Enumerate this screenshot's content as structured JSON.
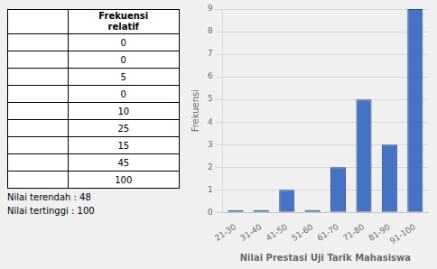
{
  "chart_data": [
    {
      "type": "table",
      "header": "Frekuensi\nrelatif",
      "values": [
        0,
        0,
        5,
        0,
        10,
        25,
        15,
        45,
        100
      ],
      "annotations": [
        "Nilai terendah : 48",
        "Nilai tertinggi : 100"
      ]
    },
    {
      "type": "bar",
      "categories": [
        "21-30",
        "31-40",
        "41-50",
        "51-60",
        "61-70",
        "71-80",
        "81-90",
        "91-100"
      ],
      "values": [
        0.1,
        0.1,
        1,
        0.1,
        2,
        5,
        3,
        9
      ],
      "color": "#4472C4",
      "xlabel": "Nilai Prestasi Uji Tarik Mahasiswa",
      "ylabel": "Frekuensi",
      "ylim": [
        0,
        9
      ],
      "yticks": [
        0,
        1,
        2,
        3,
        4,
        5,
        6,
        7,
        8,
        9
      ],
      "grid": true
    }
  ]
}
